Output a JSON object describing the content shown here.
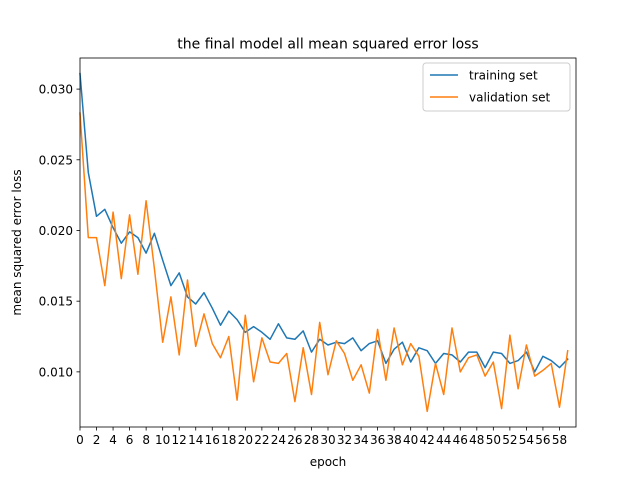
{
  "chart_data": {
    "type": "line",
    "title": "the final model all mean squared error loss",
    "xlabel": "epoch",
    "ylabel": "mean squared error loss",
    "xlim": [
      0,
      60
    ],
    "ylim": [
      0.0061,
      0.0322
    ],
    "xticks": [
      "0",
      "2",
      "4",
      "6",
      "8",
      "10",
      "12",
      "14",
      "16",
      "18",
      "20",
      "22",
      "24",
      "26",
      "28",
      "30",
      "32",
      "34",
      "36",
      "38",
      "40",
      "42",
      "44",
      "46",
      "48",
      "50",
      "52",
      "54",
      "56",
      "58"
    ],
    "yticks": [
      "0.010",
      "0.015",
      "0.020",
      "0.025",
      "0.030"
    ],
    "grid": false,
    "legend_position": "top-right",
    "x": [
      0,
      1,
      2,
      3,
      4,
      5,
      6,
      7,
      8,
      9,
      10,
      11,
      12,
      13,
      14,
      15,
      16,
      17,
      18,
      19,
      20,
      21,
      22,
      23,
      24,
      25,
      26,
      27,
      28,
      29,
      30,
      31,
      32,
      33,
      34,
      35,
      36,
      37,
      38,
      39,
      40,
      41,
      42,
      43,
      44,
      45,
      46,
      47,
      48,
      49,
      50,
      51,
      52,
      53,
      54,
      55,
      56,
      57,
      58,
      59
    ],
    "series": [
      {
        "name": "training set",
        "color": "#1f77b4",
        "values": [
          0.0311,
          0.0241,
          0.021,
          0.0215,
          0.0202,
          0.0191,
          0.0199,
          0.0195,
          0.0184,
          0.0198,
          0.0179,
          0.0161,
          0.017,
          0.0153,
          0.0148,
          0.0156,
          0.0145,
          0.0133,
          0.0143,
          0.0137,
          0.0128,
          0.0132,
          0.0128,
          0.0123,
          0.0134,
          0.0124,
          0.0123,
          0.0129,
          0.0114,
          0.0123,
          0.0119,
          0.0121,
          0.012,
          0.0124,
          0.0115,
          0.012,
          0.0122,
          0.0106,
          0.0116,
          0.0121,
          0.0107,
          0.0117,
          0.0115,
          0.0106,
          0.0113,
          0.0112,
          0.0107,
          0.0114,
          0.0114,
          0.0103,
          0.0114,
          0.0113,
          0.0106,
          0.0108,
          0.0114,
          0.01,
          0.0111,
          0.0108,
          0.0103,
          0.0109
        ]
      },
      {
        "name": "validation set",
        "color": "#ff7f0e",
        "values": [
          0.0283,
          0.0195,
          0.0195,
          0.0161,
          0.0213,
          0.0166,
          0.0211,
          0.0169,
          0.0221,
          0.0173,
          0.0121,
          0.0153,
          0.0112,
          0.0165,
          0.0118,
          0.0141,
          0.012,
          0.011,
          0.0125,
          0.008,
          0.014,
          0.0093,
          0.0124,
          0.0107,
          0.0106,
          0.0113,
          0.0079,
          0.0117,
          0.0084,
          0.0135,
          0.0098,
          0.0122,
          0.0113,
          0.0094,
          0.0105,
          0.0085,
          0.013,
          0.0094,
          0.0131,
          0.0105,
          0.012,
          0.0111,
          0.0072,
          0.0106,
          0.0084,
          0.0131,
          0.01,
          0.011,
          0.0112,
          0.0097,
          0.0107,
          0.0074,
          0.0126,
          0.0088,
          0.0119,
          0.0097,
          0.0101,
          0.0106,
          0.0075,
          0.0115
        ]
      }
    ]
  }
}
